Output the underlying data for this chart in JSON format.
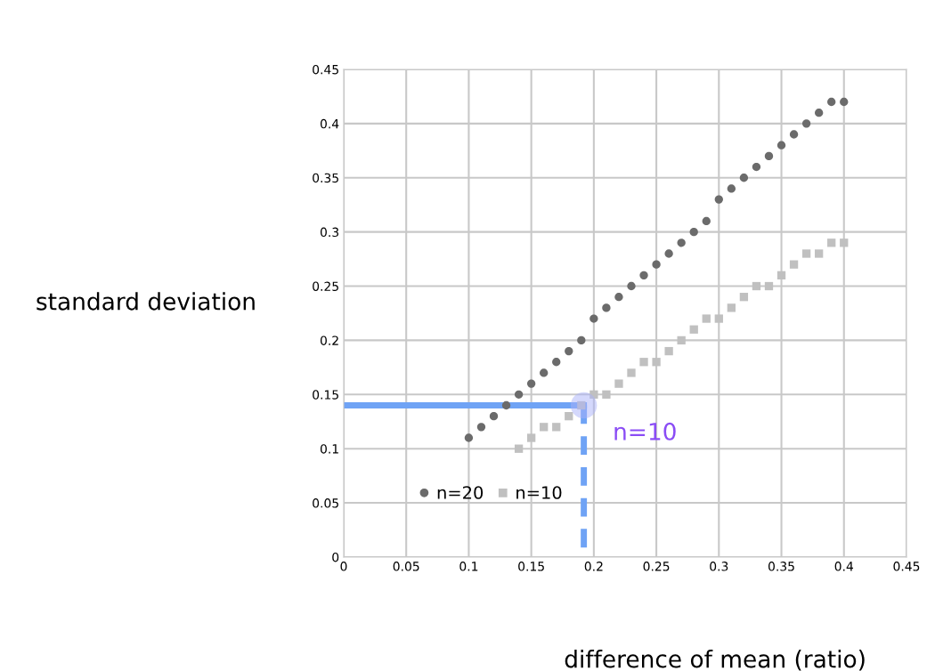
{
  "chart_data": {
    "type": "scatter",
    "xlabel": "difference of mean (ratio)",
    "ylabel": "standard deviation",
    "xlim": [
      0,
      0.45
    ],
    "ylim": [
      0,
      0.45
    ],
    "xticks": [
      0,
      0.05,
      0.1,
      0.15,
      0.2,
      0.25,
      0.3,
      0.35,
      0.4,
      0.45
    ],
    "yticks": [
      0,
      0.05,
      0.1,
      0.15,
      0.2,
      0.25,
      0.3,
      0.35,
      0.4,
      0.45
    ],
    "grid": true,
    "legend": "bottom left",
    "series": [
      {
        "name": "n=20",
        "marker": "circle",
        "color": "#6b6b6b",
        "x": [
          0.1,
          0.11,
          0.12,
          0.13,
          0.14,
          0.15,
          0.16,
          0.17,
          0.18,
          0.19,
          0.2,
          0.21,
          0.22,
          0.23,
          0.24,
          0.25,
          0.26,
          0.27,
          0.28,
          0.29,
          0.3,
          0.31,
          0.32,
          0.33,
          0.34,
          0.35,
          0.36,
          0.37,
          0.38,
          0.39,
          0.4
        ],
        "values": [
          0.11,
          0.12,
          0.13,
          0.14,
          0.15,
          0.16,
          0.17,
          0.18,
          0.19,
          0.2,
          0.22,
          0.23,
          0.24,
          0.25,
          0.26,
          0.27,
          0.28,
          0.29,
          0.3,
          0.31,
          0.33,
          0.34,
          0.35,
          0.36,
          0.37,
          0.38,
          0.39,
          0.4,
          0.41,
          0.42,
          0.42
        ]
      },
      {
        "name": "n=10",
        "marker": "square",
        "color": "#c0c0c0",
        "x": [
          0.14,
          0.15,
          0.16,
          0.17,
          0.18,
          0.19,
          0.2,
          0.21,
          0.22,
          0.23,
          0.24,
          0.25,
          0.26,
          0.27,
          0.28,
          0.29,
          0.3,
          0.31,
          0.32,
          0.33,
          0.34,
          0.35,
          0.36,
          0.37,
          0.38,
          0.39,
          0.4
        ],
        "values": [
          0.1,
          0.11,
          0.12,
          0.12,
          0.13,
          0.14,
          0.15,
          0.15,
          0.16,
          0.17,
          0.18,
          0.18,
          0.19,
          0.2,
          0.21,
          0.22,
          0.22,
          0.23,
          0.24,
          0.25,
          0.25,
          0.26,
          0.27,
          0.28,
          0.28,
          0.29,
          0.29
        ]
      },
      {
        "type": "line",
        "marker": "none",
        "line_style": "solid",
        "color": "#6fa3f5",
        "x": [
          0,
          0.192
        ],
        "values": [
          0.14,
          0.14
        ]
      },
      {
        "type": "line",
        "marker": "none",
        "line_style": "dashed",
        "color": "#6fa3f5",
        "x": [
          0.192,
          0.192
        ],
        "values": [
          0.14,
          0
        ]
      },
      {
        "type": "bubble",
        "marker": "circle",
        "color": "#a9b1fa",
        "x": [
          0.192
        ],
        "values": [
          0.14
        ]
      }
    ],
    "annotations": [
      "n=10"
    ]
  }
}
